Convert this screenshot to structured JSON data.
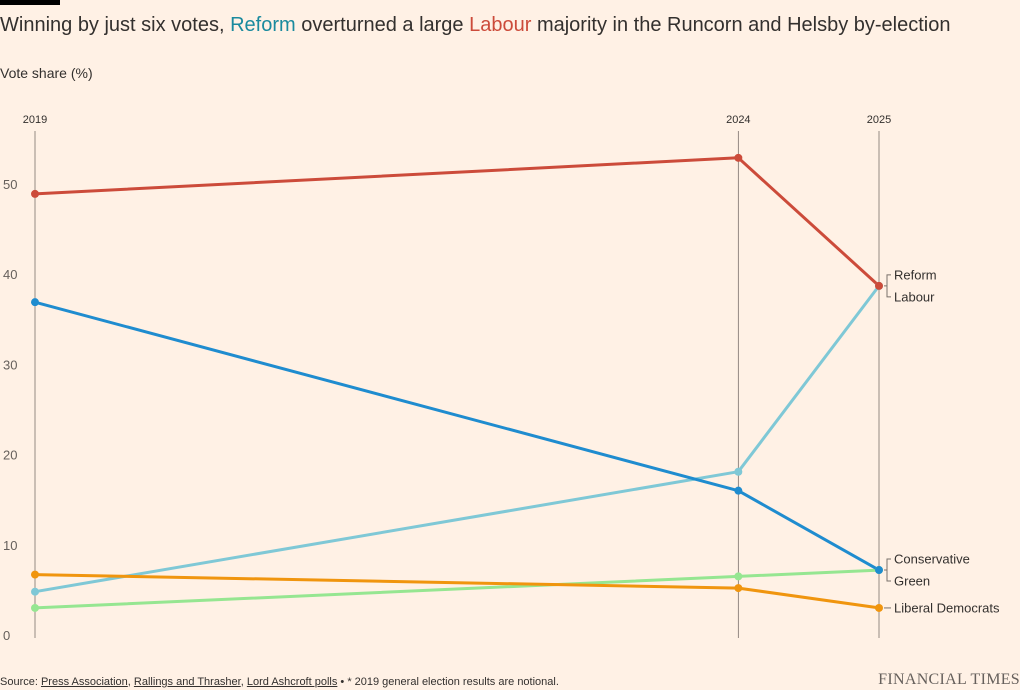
{
  "header": {
    "title_part1": "Winning by just six votes, ",
    "title_reform": "Reform",
    "title_part2": " overturned a large ",
    "title_labour": "Labour",
    "title_part3": " majority in the Runcorn and Helsby by-election",
    "subtitle": "Vote share (%)"
  },
  "footer": {
    "source_prefix": "Source: ",
    "sources": [
      "Press Association",
      "Rallings and Thrasher",
      "Lord Ashcroft polls"
    ],
    "separator": ", ",
    "note": " • * 2019 general election results are notional.",
    "brand": "FINANCIAL TIMES"
  },
  "chart_data": {
    "type": "line",
    "x": [
      2019,
      2024,
      2025
    ],
    "x_tick_labels": [
      "2019",
      "2024",
      "2025"
    ],
    "ylim": [
      0,
      55
    ],
    "yticks": [
      0,
      10,
      20,
      30,
      40,
      50
    ],
    "xlabel": "",
    "ylabel": "Vote share (%)",
    "grid": "vertical lines at each election year",
    "series": [
      {
        "name": "Labour",
        "values": [
          48.9,
          52.9,
          38.7
        ],
        "color": "#cc4b3a"
      },
      {
        "name": "Reform",
        "values": [
          4.8,
          18.1,
          38.7
        ],
        "color": "#7fc8d6"
      },
      {
        "name": "Conservative",
        "values": [
          36.9,
          16.0,
          7.2
        ],
        "color": "#1f8ccf"
      },
      {
        "name": "Green",
        "values": [
          3.0,
          6.5,
          7.2
        ],
        "color": "#96e691"
      },
      {
        "name": "Liberal Democrats",
        "values": [
          6.7,
          5.2,
          3.0
        ],
        "color": "#f0950e"
      }
    ],
    "label_groups": [
      {
        "labels": [
          "Reform",
          "Labour"
        ]
      },
      {
        "labels": [
          "Conservative",
          "Green"
        ]
      },
      {
        "labels": [
          "Liberal Democrats"
        ]
      }
    ]
  }
}
